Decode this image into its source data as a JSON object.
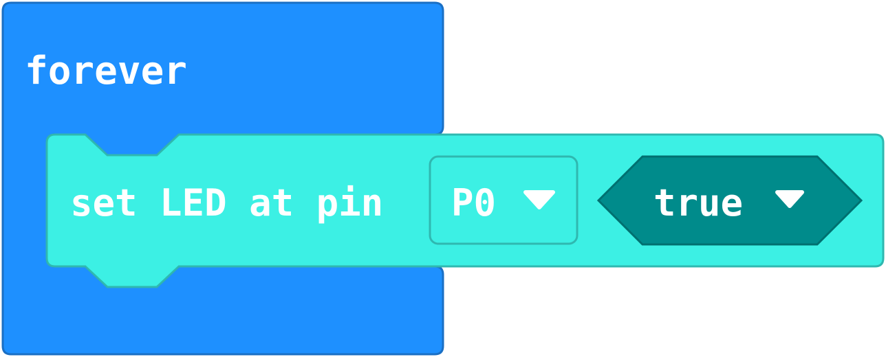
{
  "blocks": {
    "forever": {
      "label": "forever",
      "color": "#1e90ff",
      "border_color": "#1a6fc4"
    },
    "set_led": {
      "label": "set LED at pin",
      "color": "#3cf0e4",
      "border_color": "#2fb8b0",
      "pin_dropdown": {
        "value": "P0",
        "icon": "caret-down-icon"
      },
      "state_dropdown": {
        "value": "true",
        "color": "#008b8b",
        "border_color": "#007070",
        "icon": "caret-down-icon"
      }
    }
  }
}
